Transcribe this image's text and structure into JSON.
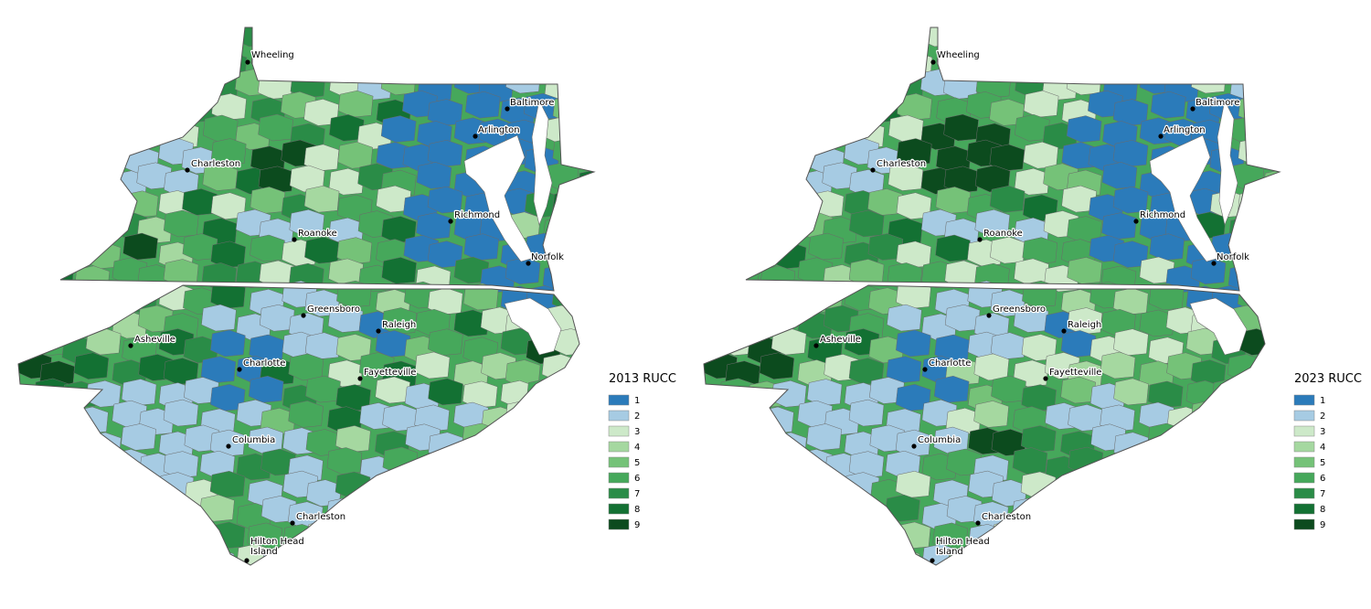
{
  "palette": {
    "1": "#2b7bba",
    "2": "#a6cbe3",
    "3": "#cde9c9",
    "4": "#a5d8a0",
    "5": "#75c278",
    "6": "#46a85b",
    "7": "#2a8c47",
    "8": "#137133",
    "9": "#0c4b1e",
    "water": "#ffffff",
    "border": "#6b6b6b"
  },
  "legend_classes": [
    "1",
    "2",
    "3",
    "4",
    "5",
    "6",
    "7",
    "8",
    "9"
  ],
  "maps": [
    {
      "id": "map-2013",
      "legend_title": "2013 RUCC"
    },
    {
      "id": "map-2023",
      "legend_title": "2023 RUCC"
    }
  ],
  "cities": [
    {
      "key": "wheeling",
      "name": "Wheeling"
    },
    {
      "key": "baltimore",
      "name": "Baltimore"
    },
    {
      "key": "arlington",
      "name": "Arlington"
    },
    {
      "key": "charleston-wv",
      "name": "Charleston"
    },
    {
      "key": "richmond",
      "name": "Richmond"
    },
    {
      "key": "roanoke",
      "name": "Roanoke"
    },
    {
      "key": "norfolk",
      "name": "Norfolk"
    },
    {
      "key": "greensboro",
      "name": "Greensboro"
    },
    {
      "key": "raleigh",
      "name": "Raleigh"
    },
    {
      "key": "asheville",
      "name": "Asheville"
    },
    {
      "key": "charlotte",
      "name": "Charlotte"
    },
    {
      "key": "fayetteville",
      "name": "Fayetteville"
    },
    {
      "key": "columbia",
      "name": "Columbia"
    },
    {
      "key": "charleston-sc",
      "name": "Charleston"
    },
    {
      "key": "hilton-head",
      "name": "Hilton Head Island",
      "lines": [
        "Hilton Head",
        "Island"
      ]
    }
  ]
}
